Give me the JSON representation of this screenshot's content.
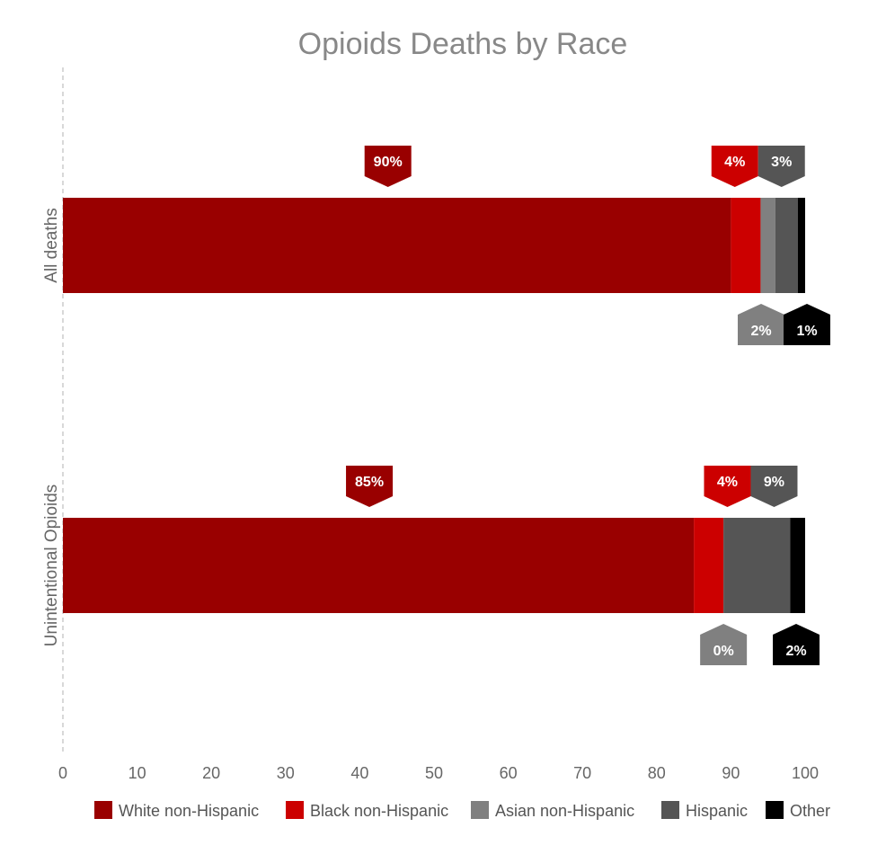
{
  "chart_data": {
    "type": "bar",
    "orientation": "horizontal",
    "stacked": true,
    "title": "Opioids Deaths by Race",
    "categories": [
      "All deaths",
      "Unintentional Opioids"
    ],
    "series": [
      {
        "name": "White non-Hispanic",
        "color": "#990000",
        "values": [
          90,
          85
        ],
        "labels": [
          "90%",
          "85%"
        ]
      },
      {
        "name": "Black non-Hispanic",
        "color": "#cc0000",
        "values": [
          4,
          4
        ],
        "labels": [
          "4%",
          "4%"
        ]
      },
      {
        "name": "Asian non-Hispanic",
        "color": "#808080",
        "values": [
          2,
          0
        ],
        "labels": [
          "2%",
          "0%"
        ]
      },
      {
        "name": "Hispanic",
        "color": "#555555",
        "values": [
          3,
          9
        ],
        "labels": [
          "3%",
          "9%"
        ]
      },
      {
        "name": "Other",
        "color": "#000000",
        "values": [
          1,
          2
        ],
        "labels": [
          "1%",
          "2%"
        ]
      }
    ],
    "xlim": [
      0,
      100
    ],
    "xticks": [
      "0",
      "10",
      "20",
      "30",
      "40",
      "50",
      "60",
      "70",
      "80",
      "90",
      "100"
    ],
    "legend_position": "bottom",
    "grid": false
  }
}
